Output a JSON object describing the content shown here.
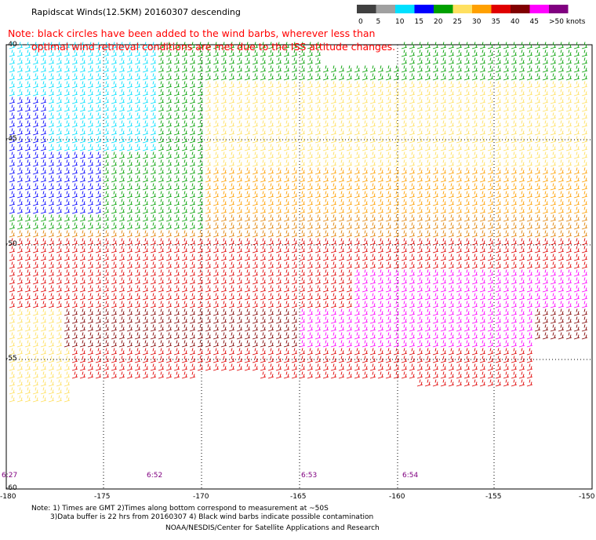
{
  "title": "Rapidscat Winds(12.5KM) 20160307 descending",
  "note": {
    "line1": "Note: black circles have been added to the wind barbs, wherever less than",
    "line2": "optimal wind retrieval conditions are met due to the ISS attitude changes."
  },
  "legend": {
    "labels": [
      "0",
      "5",
      "10",
      "15",
      "20",
      "25",
      "30",
      "35",
      "40",
      "45",
      ">50 knots"
    ],
    "colors": [
      "#404040",
      "#a0a0a0",
      "#00e0ff",
      "#0000ff",
      "#00a000",
      "#ffe060",
      "#ffa000",
      "#e00000",
      "#800000",
      "#ff00ff",
      "#800080"
    ]
  },
  "map": {
    "lon_labels": [
      "-180",
      "-175",
      "-170",
      "-165",
      "-160",
      "-155",
      "-150"
    ],
    "lat_labels": [
      "-40",
      "-45",
      "-50",
      "-55",
      "-60"
    ],
    "time_labels": [
      "6:27",
      "6:52",
      "6:53",
      "6:54"
    ]
  },
  "footer": {
    "line1": "Note: 1) Times are GMT 2)Times along bottom correspond to measurement at ~50S",
    "line2": "3)Data buffer is 22 hrs from 20160307 4) Black wind barbs indicate possible contamination",
    "line3": "NOAA/NESDIS/Center for Satellite Applications and Research"
  }
}
